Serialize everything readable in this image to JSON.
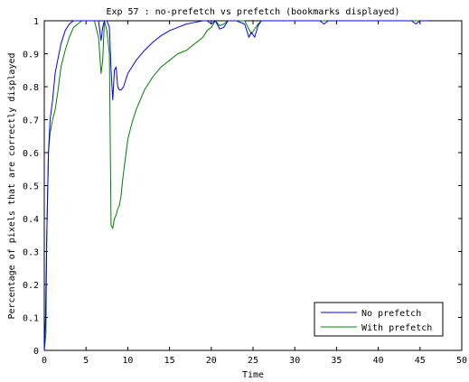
{
  "chart_data": {
    "type": "line",
    "title": "Exp 57 : no-prefetch vs prefetch (bookmarks displayed)",
    "xlabel": "Time",
    "ylabel": "Percentage of pixels that are correctly displayed",
    "xlim": [
      0,
      50
    ],
    "ylim": [
      0,
      1
    ],
    "xticks": [
      0,
      5,
      10,
      15,
      20,
      25,
      30,
      35,
      40,
      45,
      50
    ],
    "yticks": [
      0,
      0.1,
      0.2,
      0.3,
      0.4,
      0.5,
      0.6,
      0.7,
      0.8,
      0.9,
      1
    ],
    "xtick_labels": [
      "0",
      "5",
      "10",
      "15",
      "20",
      "25",
      "30",
      "35",
      "40",
      "45",
      "50"
    ],
    "ytick_labels": [
      "0",
      "0.1",
      "0.2",
      "0.3",
      "0.4",
      "0.5",
      "0.6",
      "0.7",
      "0.8",
      "0.9",
      "1"
    ],
    "grid": false,
    "legend_position": "bottom-right",
    "series": [
      {
        "name": "No prefetch",
        "color": "#0000ff",
        "x": [
          0,
          0.15,
          0.3,
          0.5,
          0.7,
          1.0,
          1.3,
          1.6,
          2.0,
          2.5,
          3.0,
          3.5,
          4.0,
          4.5,
          5.0,
          5.5,
          6.0,
          6.5,
          6.8,
          7.0,
          7.2,
          7.5,
          7.8,
          8.0,
          8.2,
          8.4,
          8.6,
          8.8,
          9.0,
          9.2,
          9.5,
          10.0,
          10.5,
          11.0,
          12.0,
          13.0,
          14.0,
          15.0,
          16.0,
          17.0,
          18.0,
          19.0,
          19.5,
          20.0,
          20.5,
          21.0,
          21.5,
          22.0,
          23.0,
          24.0,
          24.5,
          24.8,
          25.2,
          25.6,
          26.0,
          27.0,
          30.0,
          33.0,
          33.5,
          34.0,
          35.0,
          38.0,
          40.0,
          42.0,
          44.0,
          44.5,
          45.0,
          46.0
        ],
        "y": [
          0,
          0.1,
          0.35,
          0.6,
          0.7,
          0.76,
          0.84,
          0.88,
          0.93,
          0.97,
          0.99,
          1.0,
          1.0,
          1.0,
          1.0,
          1.0,
          1.0,
          1.0,
          0.94,
          0.98,
          1.0,
          1.0,
          0.98,
          0.85,
          0.76,
          0.85,
          0.86,
          0.8,
          0.79,
          0.79,
          0.8,
          0.84,
          0.86,
          0.88,
          0.91,
          0.935,
          0.955,
          0.97,
          0.98,
          0.99,
          0.995,
          1.0,
          1.0,
          0.99,
          1.0,
          0.975,
          0.98,
          1.0,
          1.0,
          0.99,
          0.95,
          0.965,
          0.95,
          0.985,
          1.0,
          1.0,
          1.0,
          1.0,
          0.99,
          1.0,
          1.0,
          1.0,
          1.0,
          1.0,
          1.0,
          0.99,
          1.0,
          1.0
        ]
      },
      {
        "name": "With prefetch",
        "color": "#008000",
        "x": [
          0,
          0.2,
          0.3,
          0.5,
          0.7,
          1.0,
          1.3,
          1.6,
          2.0,
          2.5,
          3.0,
          3.5,
          4.0,
          4.5,
          5.0,
          5.5,
          6.0,
          6.5,
          6.8,
          7.0,
          7.2,
          7.5,
          7.8,
          8.0,
          8.2,
          8.4,
          8.6,
          8.8,
          9.0,
          9.2,
          9.4,
          9.6,
          9.8,
          10.0,
          10.5,
          11.0,
          11.5,
          12.0,
          13.0,
          14.0,
          15.0,
          16.0,
          17.0,
          18.0,
          19.0,
          19.5,
          20.0,
          20.5,
          21.0,
          21.5,
          22.0,
          23.0,
          24.0,
          24.5,
          24.8,
          25.2,
          25.6,
          26.0,
          27.0,
          30.0,
          35.0,
          40.0,
          45.0,
          46.0
        ],
        "y": [
          0,
          0.05,
          0.35,
          0.6,
          0.66,
          0.7,
          0.73,
          0.78,
          0.86,
          0.91,
          0.95,
          0.98,
          0.99,
          1.0,
          1.0,
          1.0,
          1.0,
          0.95,
          0.84,
          0.88,
          1.0,
          0.97,
          0.9,
          0.38,
          0.37,
          0.4,
          0.41,
          0.43,
          0.44,
          0.47,
          0.52,
          0.56,
          0.6,
          0.64,
          0.69,
          0.73,
          0.76,
          0.79,
          0.83,
          0.86,
          0.88,
          0.9,
          0.91,
          0.93,
          0.95,
          0.97,
          0.98,
          1.0,
          0.985,
          0.99,
          1.0,
          1.0,
          1.0,
          0.975,
          0.96,
          0.975,
          0.99,
          1.0,
          1.0,
          1.0,
          1.0,
          1.0,
          1.0,
          1.0
        ]
      }
    ]
  },
  "colors": {
    "no_prefetch": "#0000ff",
    "with_prefetch": "#008000",
    "axes": "#000000",
    "background": "#ffffff"
  }
}
